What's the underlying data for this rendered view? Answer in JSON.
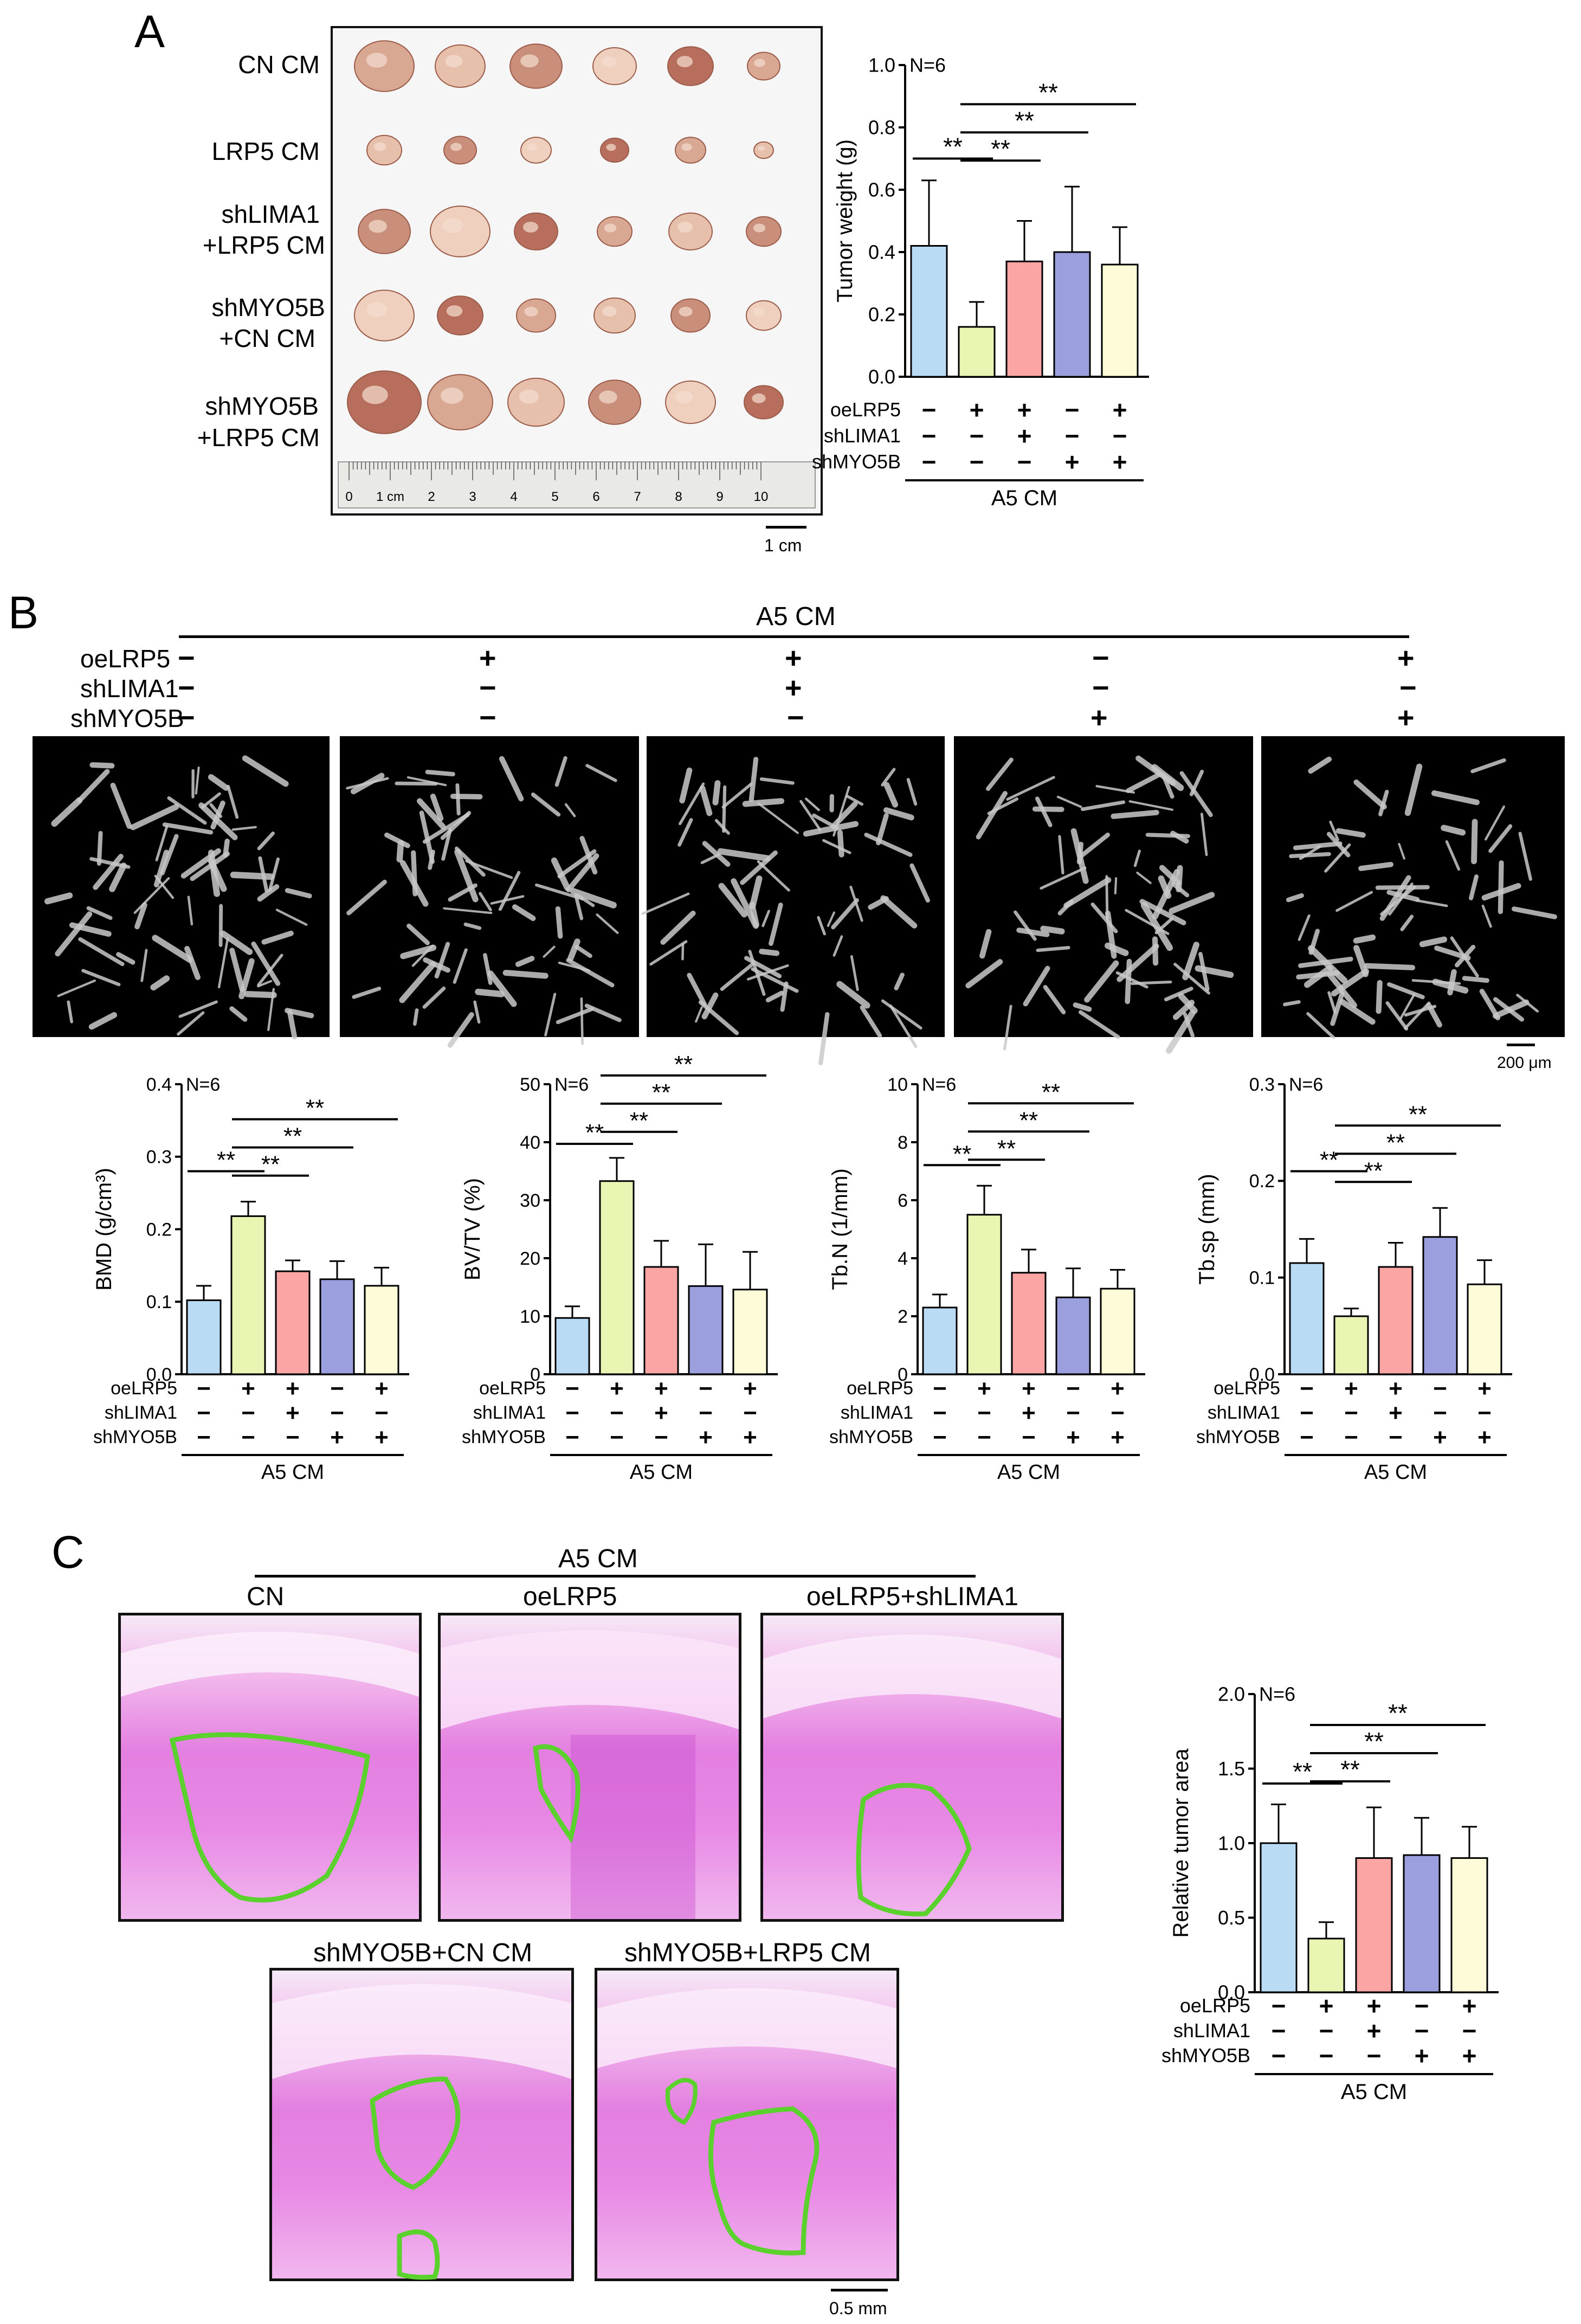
{
  "panels": {
    "a": "A",
    "b": "B",
    "c": "C"
  },
  "colors": [
    "#b9dcf4",
    "#e9f6b3",
    "#fca5a5",
    "#9c9fde",
    "#fdfbd8"
  ],
  "groups": {
    "row_labels": [
      "oeLRP5",
      "shLIMA1",
      "shMYO5B"
    ],
    "footer": "A5 CM",
    "n_label": "N=6",
    "sig": "**"
  },
  "panel_a": {
    "tumor_rows": [
      {
        "line1": "CN CM",
        "line2": ""
      },
      {
        "line1": "LRP5 CM",
        "line2": ""
      },
      {
        "line1": "shLIMA1",
        "line2": "+LRP5 CM"
      },
      {
        "line1": "shMYO5B",
        "line2": "+CN CM"
      },
      {
        "line1": "shMYO5B",
        "line2": "+LRP5 CM"
      }
    ],
    "ruler_labels": [
      "0",
      "1 cm",
      "2",
      "3",
      "4",
      "5",
      "6",
      "7",
      "8",
      "9",
      "10"
    ],
    "scale_label": "1 cm"
  },
  "panel_b": {
    "header": "A5 CM",
    "scale_label": "200 μm",
    "conditions": [
      {
        "oeLRP5": "−",
        "shLIMA1": "−",
        "shMYO5B": "−"
      },
      {
        "oeLRP5": "+",
        "shLIMA1": "−",
        "shMYO5B": "−"
      },
      {
        "oeLRP5": "+",
        "shLIMA1": "+",
        "shMYO5B": "−"
      },
      {
        "oeLRP5": "−",
        "shLIMA1": "−",
        "shMYO5B": "+"
      },
      {
        "oeLRP5": "+",
        "shLIMA1": "−",
        "shMYO5B": "+"
      }
    ]
  },
  "panel_c": {
    "header": "A5 CM",
    "labels": [
      "CN",
      "oeLRP5",
      "oeLRP5+shLIMA1",
      "shMYO5B+CN CM",
      "shMYO5B+LRP5 CM"
    ],
    "scale_label": "0.5 mm"
  },
  "chart_data": [
    {
      "id": "tumor",
      "type": "bar",
      "ylabel": "Tumor weight (g)",
      "ylim": [
        0,
        1.0
      ],
      "yticks": [
        "0.0",
        "0.2",
        "0.4",
        "0.6",
        "0.8",
        "1.0"
      ],
      "values": [
        0.42,
        0.16,
        0.37,
        0.4,
        0.36
      ],
      "errors": [
        0.21,
        0.08,
        0.13,
        0.21,
        0.12
      ],
      "signs": {
        "oeLRP5": [
          "−",
          "+",
          "+",
          "−",
          "+"
        ],
        "shLIMA1": [
          "−",
          "−",
          "+",
          "−",
          "−"
        ],
        "shMYO5B": [
          "−",
          "−",
          "−",
          "+",
          "+"
        ]
      },
      "brackets": [
        [
          0,
          1
        ],
        [
          1,
          2
        ],
        [
          1,
          3
        ],
        [
          1,
          4
        ]
      ],
      "n_label": "N=6",
      "footer": "A5 CM"
    },
    {
      "id": "bmd",
      "type": "bar",
      "ylabel": "BMD (g/cm³)",
      "ylim": [
        0,
        0.4
      ],
      "yticks": [
        "0.0",
        "0.1",
        "0.2",
        "0.3",
        "0.4"
      ],
      "values": [
        0.102,
        0.218,
        0.142,
        0.131,
        0.122
      ],
      "errors": [
        0.02,
        0.02,
        0.015,
        0.025,
        0.025
      ],
      "signs": {
        "oeLRP5": [
          "−",
          "+",
          "+",
          "−",
          "+"
        ],
        "shLIMA1": [
          "−",
          "−",
          "+",
          "−",
          "−"
        ],
        "shMYO5B": [
          "−",
          "−",
          "−",
          "+",
          "+"
        ]
      },
      "brackets": [
        [
          0,
          1
        ],
        [
          1,
          2
        ],
        [
          1,
          3
        ],
        [
          1,
          4
        ]
      ],
      "n_label": "N=6",
      "footer": "A5 CM"
    },
    {
      "id": "bvtv",
      "type": "bar",
      "ylabel": "BV/TV (%)",
      "ylim": [
        0,
        50
      ],
      "yticks": [
        "0",
        "10",
        "20",
        "30",
        "40",
        "50"
      ],
      "values": [
        9.7,
        33.3,
        18.5,
        15.2,
        14.6
      ],
      "errors": [
        2.0,
        4.0,
        4.5,
        7.2,
        6.5
      ],
      "signs": {
        "oeLRP5": [
          "−",
          "+",
          "+",
          "−",
          "+"
        ],
        "shLIMA1": [
          "−",
          "−",
          "+",
          "−",
          "−"
        ],
        "shMYO5B": [
          "−",
          "−",
          "−",
          "+",
          "+"
        ]
      },
      "brackets": [
        [
          0,
          1
        ],
        [
          1,
          2
        ],
        [
          1,
          3
        ],
        [
          1,
          4
        ]
      ],
      "n_label": "N=6",
      "footer": "A5 CM"
    },
    {
      "id": "tbn",
      "type": "bar",
      "ylabel": "Tb.N (1/mm)",
      "ylim": [
        0,
        10
      ],
      "yticks": [
        "0",
        "2",
        "4",
        "6",
        "8",
        "10"
      ],
      "values": [
        2.3,
        5.5,
        3.5,
        2.65,
        2.95
      ],
      "errors": [
        0.45,
        1.0,
        0.8,
        1.0,
        0.65
      ],
      "signs": {
        "oeLRP5": [
          "−",
          "+",
          "+",
          "−",
          "+"
        ],
        "shLIMA1": [
          "−",
          "−",
          "+",
          "−",
          "−"
        ],
        "shMYO5B": [
          "−",
          "−",
          "−",
          "+",
          "+"
        ]
      },
      "brackets": [
        [
          0,
          1
        ],
        [
          1,
          2
        ],
        [
          1,
          3
        ],
        [
          1,
          4
        ]
      ],
      "n_label": "N=6",
      "footer": "A5 CM"
    },
    {
      "id": "tbsp",
      "type": "bar",
      "ylabel": "Tb.sp (mm)",
      "ylim": [
        0,
        0.3
      ],
      "yticks": [
        "0.0",
        "0.1",
        "0.2",
        "0.3"
      ],
      "values": [
        0.115,
        0.06,
        0.111,
        0.142,
        0.093
      ],
      "errors": [
        0.025,
        0.008,
        0.025,
        0.03,
        0.025
      ],
      "signs": {
        "oeLRP5": [
          "−",
          "+",
          "+",
          "−",
          "+"
        ],
        "shLIMA1": [
          "−",
          "−",
          "+",
          "−",
          "−"
        ],
        "shMYO5B": [
          "−",
          "−",
          "−",
          "+",
          "+"
        ]
      },
      "brackets": [
        [
          0,
          1
        ],
        [
          1,
          2
        ],
        [
          1,
          3
        ],
        [
          1,
          4
        ]
      ],
      "n_label": "N=6",
      "footer": "A5 CM"
    },
    {
      "id": "area",
      "type": "bar",
      "ylabel": "Relative tumor area",
      "ylim": [
        0,
        2.0
      ],
      "yticks": [
        "0.0",
        "0.5",
        "1.0",
        "1.5",
        "2.0"
      ],
      "values": [
        1.0,
        0.36,
        0.9,
        0.92,
        0.9
      ],
      "errors": [
        0.26,
        0.11,
        0.34,
        0.25,
        0.21
      ],
      "signs": {
        "oeLRP5": [
          "−",
          "+",
          "+",
          "−",
          "+"
        ],
        "shLIMA1": [
          "−",
          "−",
          "+",
          "−",
          "−"
        ],
        "shMYO5B": [
          "−",
          "−",
          "−",
          "+",
          "+"
        ]
      },
      "brackets": [
        [
          0,
          1
        ],
        [
          1,
          2
        ],
        [
          1,
          3
        ],
        [
          1,
          4
        ]
      ],
      "n_label": "N=6",
      "footer": "A5 CM"
    }
  ]
}
